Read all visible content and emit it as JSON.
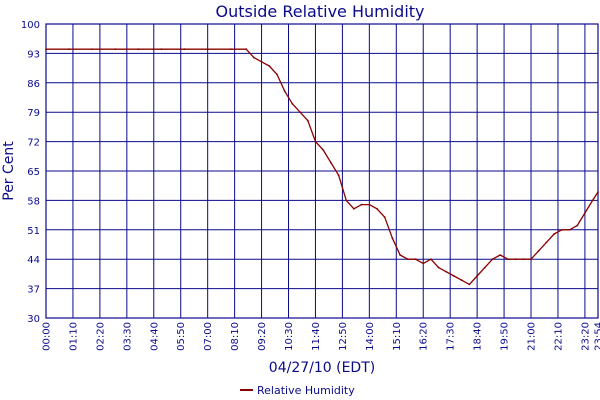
{
  "chart_data": {
    "type": "line",
    "title": "Outside Relative Humidity",
    "xlabel": "04/27/10 (EDT)",
    "ylabel": "Per Cent",
    "ylim": [
      30,
      100
    ],
    "y_ticks": [
      "100",
      "93",
      "86",
      "79",
      "72",
      "65",
      "58",
      "51",
      "44",
      "37",
      "30"
    ],
    "x_ticks": [
      "00:00",
      "01:10",
      "02:20",
      "03:30",
      "04:40",
      "05:50",
      "07:00",
      "08:10",
      "09:20",
      "10:30",
      "11:40",
      "12:50",
      "14:00",
      "15:10",
      "16:20",
      "17:30",
      "18:40",
      "19:50",
      "21:00",
      "22:10",
      "23:20",
      "23:54"
    ],
    "grid": true,
    "legend_position": "bottom-center",
    "colors": {
      "series": "#8b0000",
      "grid": "#0a0a8c",
      "text": "#0a0a8c"
    },
    "series": [
      {
        "name": "Relative Humidity",
        "x": [
          "00:00",
          "01:00",
          "02:00",
          "03:00",
          "04:00",
          "05:00",
          "06:00",
          "07:00",
          "08:00",
          "08:40",
          "09:00",
          "09:20",
          "09:40",
          "10:00",
          "10:20",
          "10:40",
          "11:00",
          "11:20",
          "11:40",
          "12:00",
          "12:20",
          "12:40",
          "13:00",
          "13:20",
          "13:40",
          "14:00",
          "14:20",
          "14:40",
          "15:00",
          "15:20",
          "15:40",
          "16:00",
          "16:20",
          "16:40",
          "17:00",
          "17:20",
          "17:40",
          "18:00",
          "18:20",
          "18:40",
          "19:00",
          "19:20",
          "19:40",
          "20:00",
          "20:20",
          "20:40",
          "21:00",
          "21:20",
          "21:40",
          "22:00",
          "22:20",
          "22:40",
          "23:00",
          "23:20",
          "23:40",
          "23:54"
        ],
        "values": [
          94,
          94,
          94,
          94,
          94,
          94,
          94,
          94,
          94,
          94,
          92,
          91,
          90,
          88,
          84,
          81,
          79,
          77,
          72,
          70,
          67,
          64,
          58,
          56,
          57,
          57,
          56,
          54,
          49,
          45,
          44,
          44,
          43,
          44,
          42,
          41,
          40,
          39,
          38,
          40,
          42,
          44,
          45,
          44,
          44,
          44,
          44,
          46,
          48,
          50,
          51,
          51,
          52,
          55,
          58,
          60
        ]
      }
    ]
  }
}
